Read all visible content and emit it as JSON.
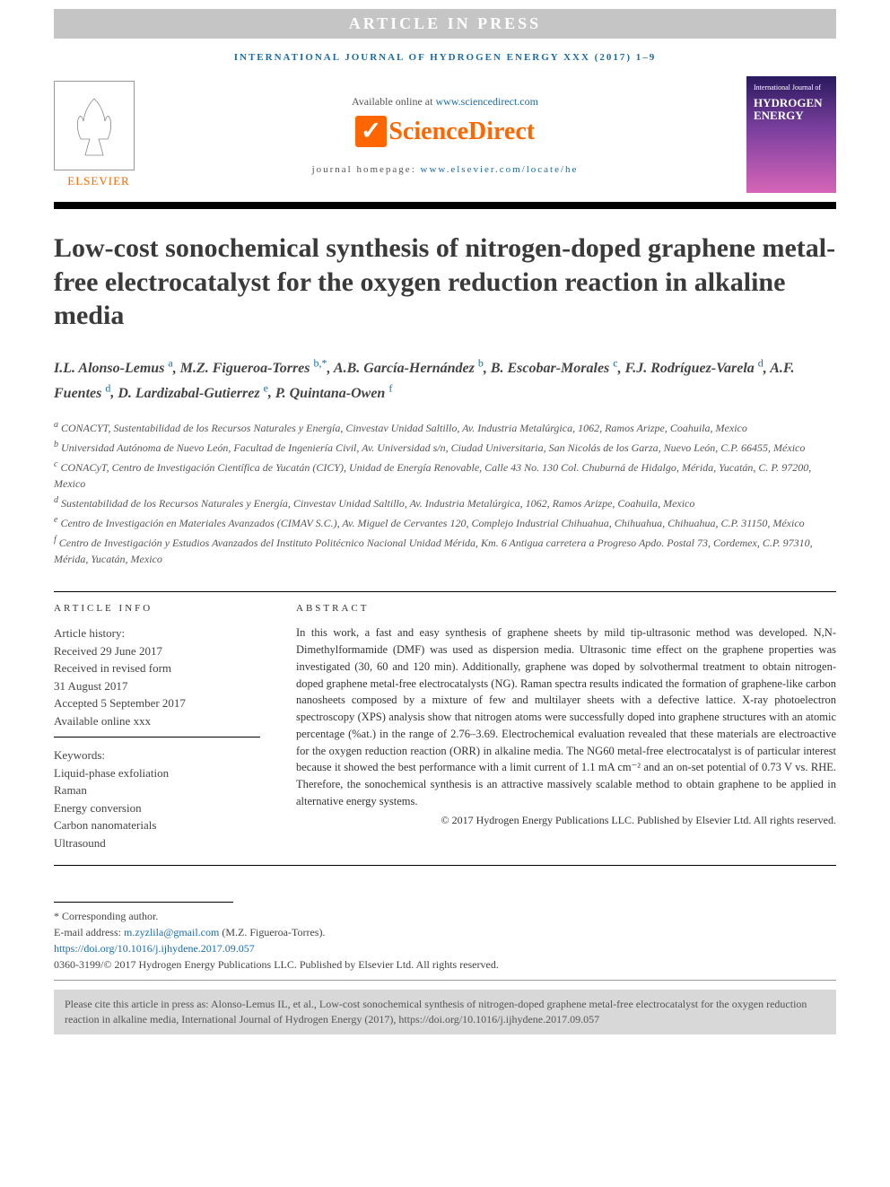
{
  "pressBanner": "ARTICLE IN PRESS",
  "journalRef": "INTERNATIONAL JOURNAL OF HYDROGEN ENERGY XXX (2017) 1–9",
  "availableOnline": "Available online at ",
  "sdUrl": "www.sciencedirect.com",
  "sdLogo": "ScienceDirect",
  "homepageLabel": "journal homepage: ",
  "homepageUrl": "www.elsevier.com/locate/he",
  "elsevierLabel": "ELSEVIER",
  "coverJournal": "International Journal of",
  "coverTitle": "HYDROGEN ENERGY",
  "title": "Low-cost sonochemical synthesis of nitrogen-doped graphene metal-free electrocatalyst for the oxygen reduction reaction in alkaline media",
  "authors": [
    {
      "name": "I.L. Alonso-Lemus",
      "sup": "a"
    },
    {
      "name": "M.Z. Figueroa-Torres",
      "sup": "b,*"
    },
    {
      "name": "A.B. García-Hernández",
      "sup": "b"
    },
    {
      "name": "B. Escobar-Morales",
      "sup": "c"
    },
    {
      "name": "F.J. Rodríguez-Varela",
      "sup": "d"
    },
    {
      "name": "A.F. Fuentes",
      "sup": "d"
    },
    {
      "name": "D. Lardizabal-Gutierrez",
      "sup": "e"
    },
    {
      "name": "P. Quintana-Owen",
      "sup": "f"
    }
  ],
  "affiliations": [
    {
      "sup": "a",
      "text": "CONACYT, Sustentabilidad de los Recursos Naturales y Energía, Cinvestav Unidad Saltillo, Av. Industria Metalúrgica, 1062, Ramos Arizpe, Coahuila, Mexico"
    },
    {
      "sup": "b",
      "text": "Universidad Autónoma de Nuevo León, Facultad de Ingeniería Civil, Av. Universidad s/n, Ciudad Universitaria, San Nicolás de los Garza, Nuevo León, C.P. 66455, México"
    },
    {
      "sup": "c",
      "text": "CONACyT, Centro de Investigación Científica de Yucatán (CICY), Unidad de Energía Renovable, Calle 43 No. 130 Col. Chuburná de Hidalgo, Mérida, Yucatán, C. P. 97200, Mexico"
    },
    {
      "sup": "d",
      "text": "Sustentabilidad de los Recursos Naturales y Energía, Cinvestav Unidad Saltillo, Av. Industria Metalúrgica, 1062, Ramos Arizpe, Coahuila, Mexico"
    },
    {
      "sup": "e",
      "text": "Centro de Investigación en Materiales Avanzados (CIMAV S.C.), Av. Miguel de Cervantes 120, Complejo Industrial Chihuahua, Chihuahua, Chihuahua, C.P. 31150, México"
    },
    {
      "sup": "f",
      "text": "Centro de Investigación y Estudios Avanzados del Instituto Politécnico Nacional Unidad Mérida, Km. 6 Antigua carretera a Progreso Apdo. Postal 73, Cordemex, C.P. 97310, Mérida, Yucatán, Mexico"
    }
  ],
  "infoHeading": "ARTICLE INFO",
  "abstractHeading": "ABSTRACT",
  "history": {
    "label": "Article history:",
    "received": "Received 29 June 2017",
    "revised": "Received in revised form",
    "revisedDate": "31 August 2017",
    "accepted": "Accepted 5 September 2017",
    "online": "Available online xxx"
  },
  "keywordsLabel": "Keywords:",
  "keywords": [
    "Liquid-phase exfoliation",
    "Raman",
    "Energy conversion",
    "Carbon nanomaterials",
    "Ultrasound"
  ],
  "abstract": "In this work, a fast and easy synthesis of graphene sheets by mild tip-ultrasonic method was developed. N,N-Dimethylformamide (DMF) was used as dispersion media. Ultrasonic time effect on the graphene properties was investigated (30, 60 and 120 min). Additionally, graphene was doped by solvothermal treatment to obtain nitrogen-doped graphene metal-free electrocatalysts (NG). Raman spectra results indicated the formation of graphene-like carbon nanosheets composed by a mixture of few and multilayer sheets with a defective lattice. X-ray photoelectron spectroscopy (XPS) analysis show that nitrogen atoms were successfully doped into graphene structures with an atomic percentage (%at.) in the range of 2.76–3.69. Electrochemical evaluation revealed that these materials are electroactive for the oxygen reduction reaction (ORR) in alkaline media. The NG60 metal-free electrocatalyst is of particular interest because it showed the best performance with a limit current of 1.1 mA cm⁻² and an on-set potential of 0.73 V vs. RHE. Therefore, the sonochemical synthesis is an attractive massively scalable method to obtain graphene to be applied in alternative energy systems.",
  "copyright": "© 2017 Hydrogen Energy Publications LLC. Published by Elsevier Ltd. All rights reserved.",
  "correspAuthor": "* Corresponding author.",
  "emailLabel": "E-mail address: ",
  "email": "m.zyzlila@gmail.com",
  "emailName": " (M.Z. Figueroa-Torres).",
  "doi": "https://doi.org/10.1016/j.ijhydene.2017.09.057",
  "issn": "0360-3199/© 2017 Hydrogen Energy Publications LLC. Published by Elsevier Ltd. All rights reserved.",
  "citeBox": "Please cite this article in press as: Alonso-Lemus IL, et al., Low-cost sonochemical synthesis of nitrogen-doped graphene metal-free electrocatalyst for the oxygen reduction reaction in alkaline media, International Journal of Hydrogen Energy (2017), https://doi.org/10.1016/j.ijhydene.2017.09.057"
}
